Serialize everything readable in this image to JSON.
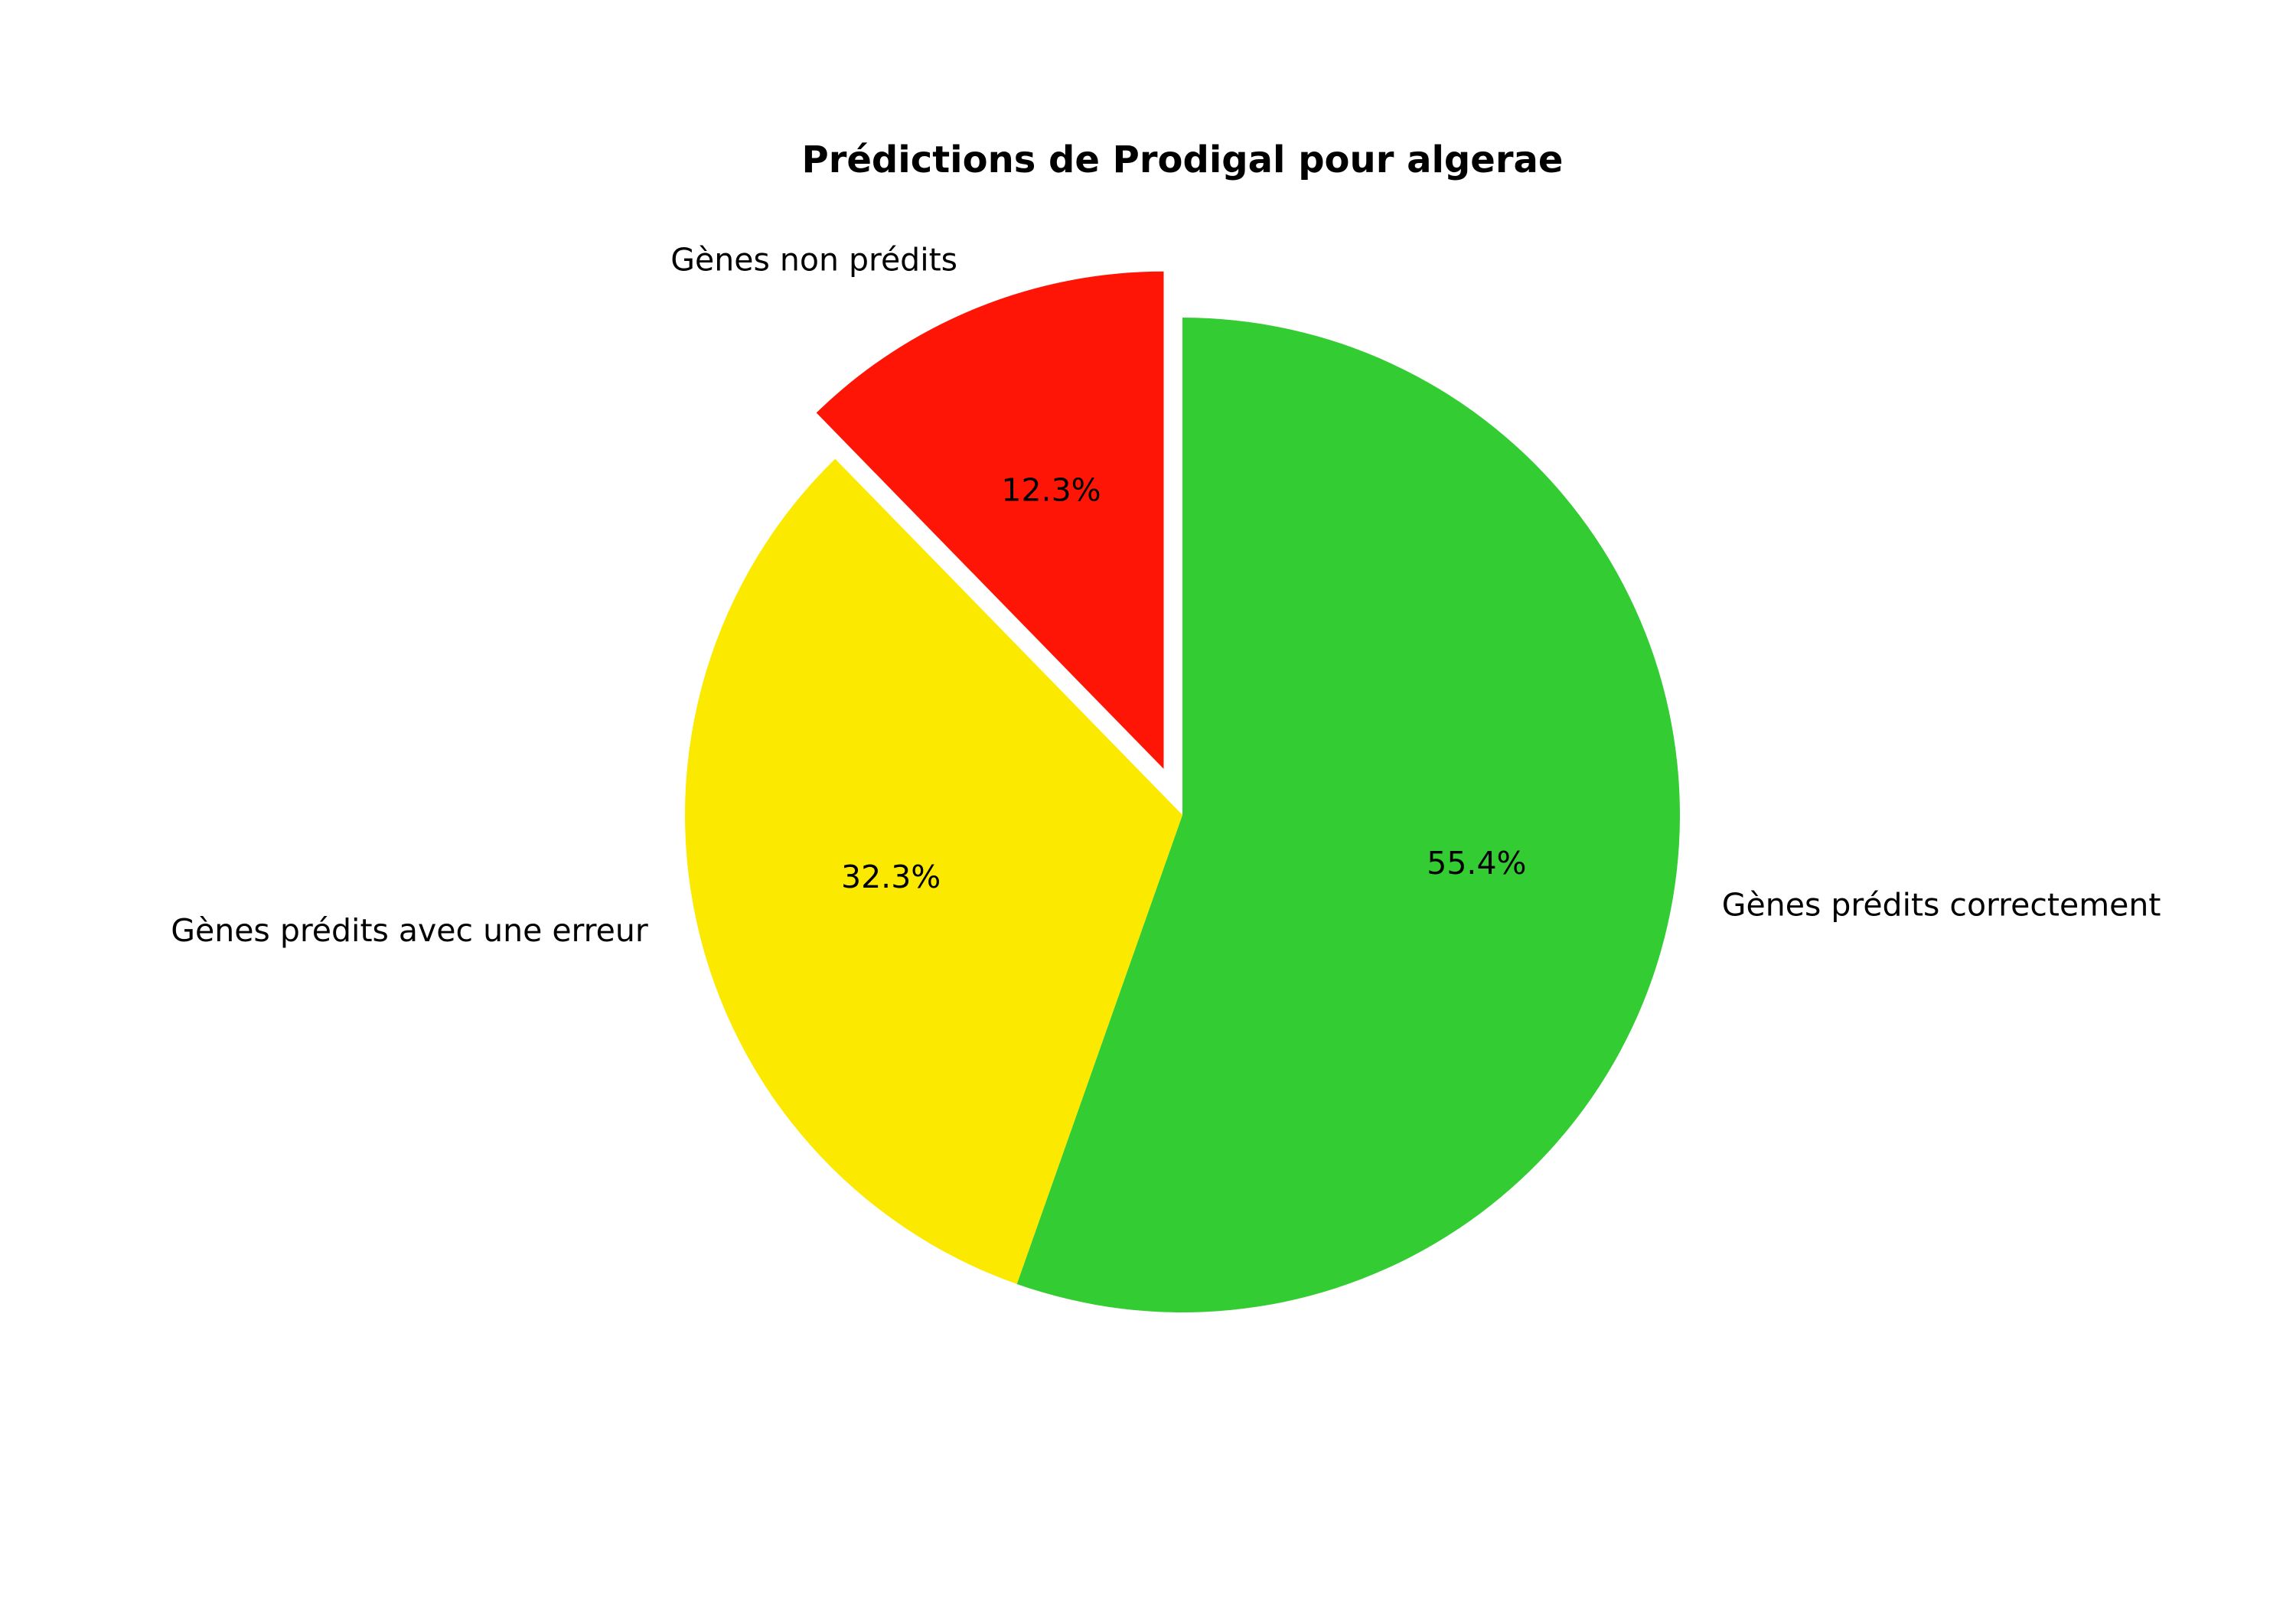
{
  "chart_data": {
    "type": "pie",
    "title": "Prédictions de Prodigal pour algerae",
    "start_angle_deg": 90,
    "direction": "clockwise",
    "slices": [
      {
        "label": "Gènes prédits correctement",
        "value": 55.4,
        "pct_text": "55.4%",
        "color": "#33cc33",
        "explode": 0
      },
      {
        "label": "Gènes prédits avec une erreur",
        "value": 32.3,
        "pct_text": "32.3%",
        "color": "#fbea00",
        "explode": 0
      },
      {
        "label": "Gènes non prédits",
        "value": 12.3,
        "pct_text": "12.3%",
        "color": "#ff1505",
        "explode": 0.1
      }
    ]
  }
}
